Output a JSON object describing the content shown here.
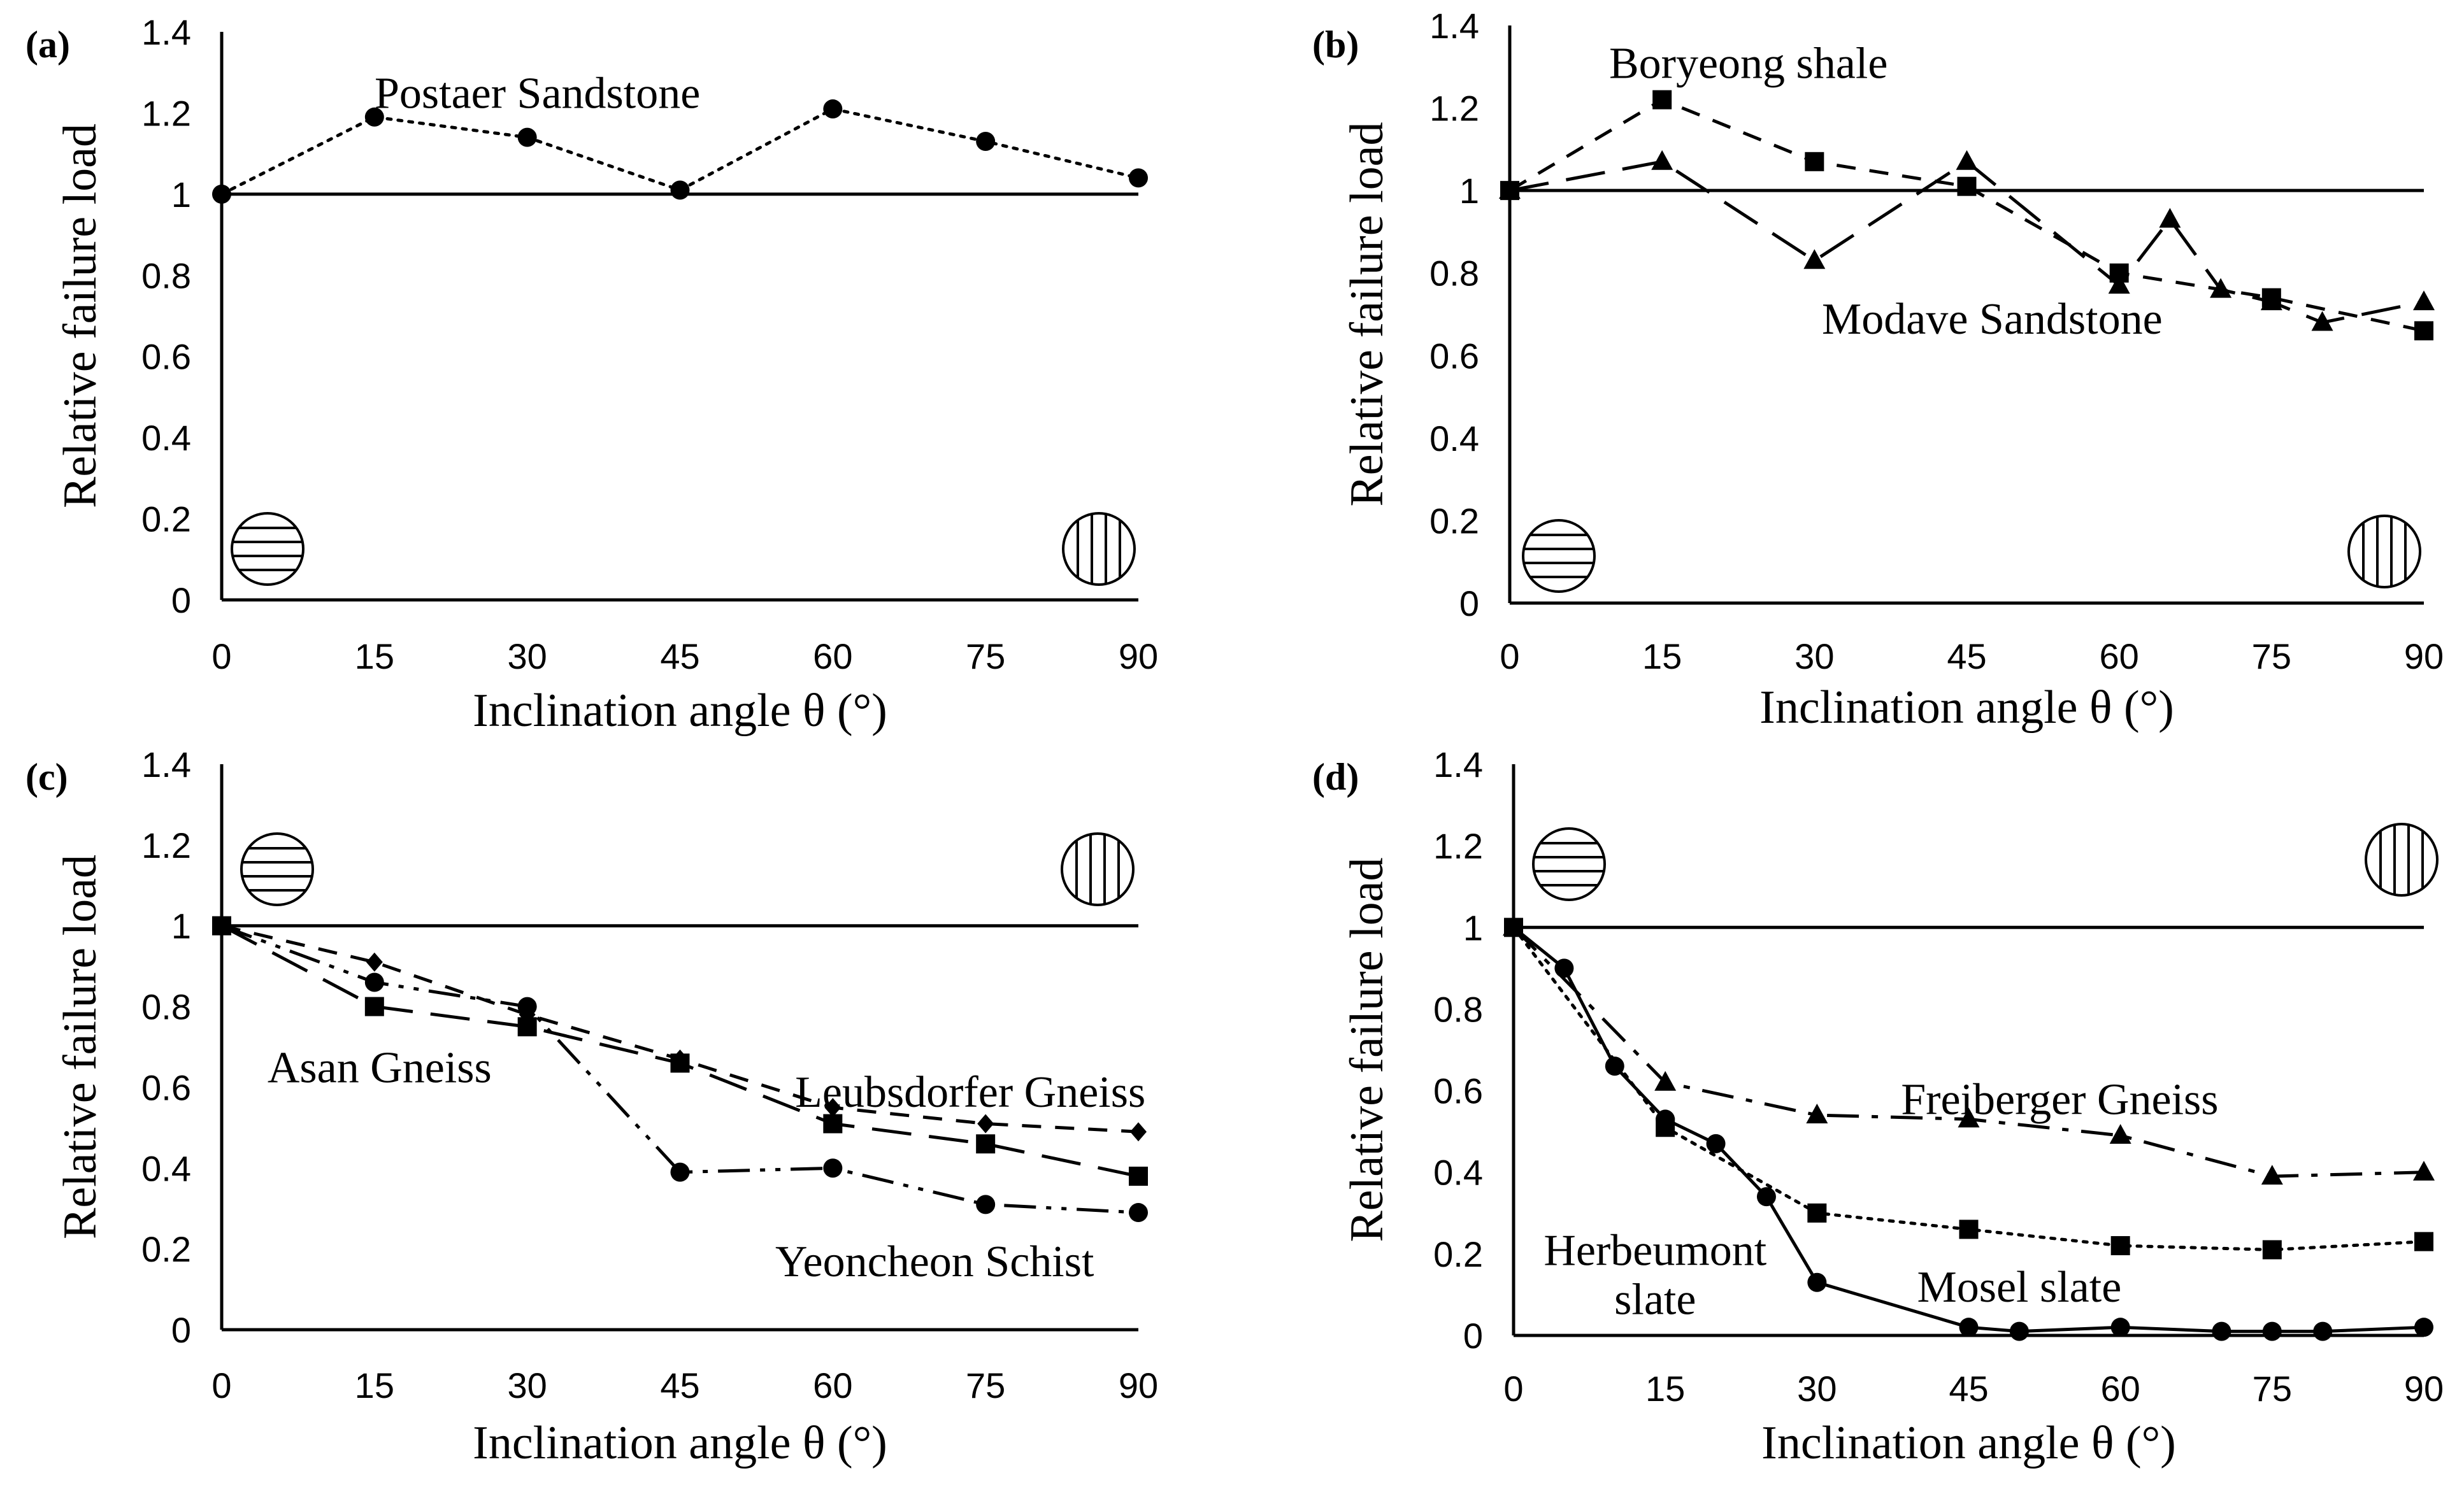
{
  "chart_data": [
    {
      "type": "line",
      "panel_label": "(a)",
      "xlabel": "Inclination angle θ (°)",
      "ylabel": "Relative failure load",
      "xlim": [
        0,
        90
      ],
      "ylim": [
        0,
        1.4
      ],
      "x_ticks": [
        "0",
        "15",
        "30",
        "45",
        "60",
        "75",
        "90"
      ],
      "y_ticks": [
        "0",
        "0.2",
        "0.4",
        "0.6",
        "0.8",
        "1",
        "1.2",
        "1.4"
      ],
      "reference_line": 1,
      "series": [
        {
          "name": "Postaer Sandstone",
          "marker": "circle",
          "dash": "dotted",
          "x": [
            0,
            15,
            30,
            45,
            60,
            75,
            90
          ],
          "y": [
            1.0,
            1.19,
            1.14,
            1.01,
            1.21,
            1.13,
            1.04
          ]
        }
      ],
      "annotations": [
        {
          "text": "Postaer Sandstone",
          "x": 31,
          "y": 1.25
        }
      ],
      "icons": [
        "horizontal-bedding",
        "vertical-bedding"
      ]
    },
    {
      "type": "line",
      "panel_label": "(b)",
      "xlabel": "Inclination angle θ (°)",
      "ylabel": "Relative failure load",
      "xlim": [
        0,
        90
      ],
      "ylim": [
        0,
        1.4
      ],
      "x_ticks": [
        "0",
        "15",
        "30",
        "45",
        "60",
        "75",
        "90"
      ],
      "y_ticks": [
        "0",
        "0.2",
        "0.4",
        "0.6",
        "0.8",
        "1",
        "1.2",
        "1.4"
      ],
      "reference_line": 1,
      "series": [
        {
          "name": "Boryeong shale",
          "marker": "square",
          "dash": "short-dash",
          "x": [
            0,
            15,
            30,
            45,
            60,
            75,
            90
          ],
          "y": [
            1.0,
            1.22,
            1.07,
            1.01,
            0.8,
            0.74,
            0.66
          ]
        },
        {
          "name": "Modave Sandstone",
          "marker": "triangle",
          "dash": "long-dash",
          "x": [
            0,
            15,
            30,
            45,
            60,
            65,
            70,
            75,
            80,
            90
          ],
          "y": [
            1.0,
            1.07,
            0.83,
            1.07,
            0.77,
            0.93,
            0.76,
            0.73,
            0.68,
            0.73
          ]
        }
      ],
      "annotations": [
        {
          "text": "Boryeong shale",
          "x": 23.5,
          "y": 1.31
        },
        {
          "text": "Modave Sandstone",
          "x": 47.5,
          "y": 0.69
        }
      ],
      "icons": [
        "horizontal-bedding",
        "vertical-bedding"
      ]
    },
    {
      "type": "line",
      "panel_label": "(c)",
      "xlabel": "Inclination angle θ (°)",
      "ylabel": "Relative failure load",
      "xlim": [
        0,
        90
      ],
      "ylim": [
        0,
        1.4
      ],
      "x_ticks": [
        "0",
        "15",
        "30",
        "45",
        "60",
        "75",
        "90"
      ],
      "y_ticks": [
        "0",
        "0.2",
        "0.4",
        "0.6",
        "0.8",
        "1",
        "1.2",
        "1.4"
      ],
      "reference_line": 1,
      "series": [
        {
          "name": "Leubsdorfer Gneiss",
          "marker": "diamond",
          "dash": "short-dash",
          "x": [
            0,
            15,
            30,
            45,
            60,
            75,
            90
          ],
          "y": [
            1.0,
            0.91,
            0.78,
            0.67,
            0.55,
            0.51,
            0.49
          ]
        },
        {
          "name": "Asan Gneiss",
          "marker": "square",
          "dash": "long-dash",
          "x": [
            0,
            15,
            30,
            45,
            60,
            75,
            90
          ],
          "y": [
            1.0,
            0.8,
            0.75,
            0.66,
            0.51,
            0.46,
            0.38
          ]
        },
        {
          "name": "Yeoncheon Schist",
          "marker": "circle",
          "dash": "dash-dot-dot",
          "x": [
            0,
            15,
            30,
            45,
            60,
            75,
            90
          ],
          "y": [
            1.0,
            0.86,
            0.8,
            0.39,
            0.4,
            0.31,
            0.29
          ]
        }
      ],
      "annotations": [
        {
          "text": "Asan Gneiss",
          "x": 15.5,
          "y": 0.65
        },
        {
          "text": "Leubsdorfer Gneiss",
          "x": 73.5,
          "y": 0.59
        },
        {
          "text": "Yeoncheon Schist",
          "x": 70,
          "y": 0.17
        }
      ],
      "icons": [
        "horizontal-bedding",
        "vertical-bedding"
      ]
    },
    {
      "type": "line",
      "panel_label": "(d)",
      "xlabel": "Inclination angle θ (°)",
      "ylabel": "Relative failure load",
      "xlim": [
        0,
        90
      ],
      "ylim": [
        0,
        1.4
      ],
      "x_ticks": [
        "0",
        "15",
        "30",
        "45",
        "60",
        "75",
        "90"
      ],
      "y_ticks": [
        "0",
        "0.2",
        "0.4",
        "0.6",
        "0.8",
        "1",
        "1.2",
        "1.4"
      ],
      "reference_line": 1,
      "series": [
        {
          "name": "Freiberger Gneiss",
          "marker": "triangle",
          "dash": "dash-dot",
          "x": [
            0,
            15,
            30,
            45,
            60,
            75,
            90
          ],
          "y": [
            1.0,
            0.62,
            0.54,
            0.53,
            0.49,
            0.39,
            0.4
          ]
        },
        {
          "name": "Mosel slate",
          "marker": "square",
          "dash": "dotted",
          "x": [
            0,
            15,
            30,
            45,
            60,
            75,
            90
          ],
          "y": [
            1.0,
            0.51,
            0.3,
            0.26,
            0.22,
            0.21,
            0.23
          ]
        },
        {
          "name": "Herbeumont slate",
          "marker": "circle",
          "dash": "solid",
          "x": [
            0,
            5,
            10,
            15,
            20,
            25,
            30,
            45,
            50,
            60,
            70,
            75,
            80,
            90
          ],
          "y": [
            1.0,
            0.9,
            0.66,
            0.53,
            0.47,
            0.34,
            0.13,
            0.02,
            0.01,
            0.02,
            0.01,
            0.01,
            0.01,
            0.02
          ]
        }
      ],
      "annotations": [
        {
          "text": "Freiberger Gneiss",
          "x": 54,
          "y": 0.58
        },
        {
          "text": "Herbeumont",
          "x": 14,
          "y": 0.21
        },
        {
          "text": "slate",
          "x": 14,
          "y": 0.09
        },
        {
          "text": "Mosel slate",
          "x": 50,
          "y": 0.12
        }
      ],
      "icons": [
        "horizontal-bedding",
        "vertical-bedding"
      ]
    }
  ]
}
